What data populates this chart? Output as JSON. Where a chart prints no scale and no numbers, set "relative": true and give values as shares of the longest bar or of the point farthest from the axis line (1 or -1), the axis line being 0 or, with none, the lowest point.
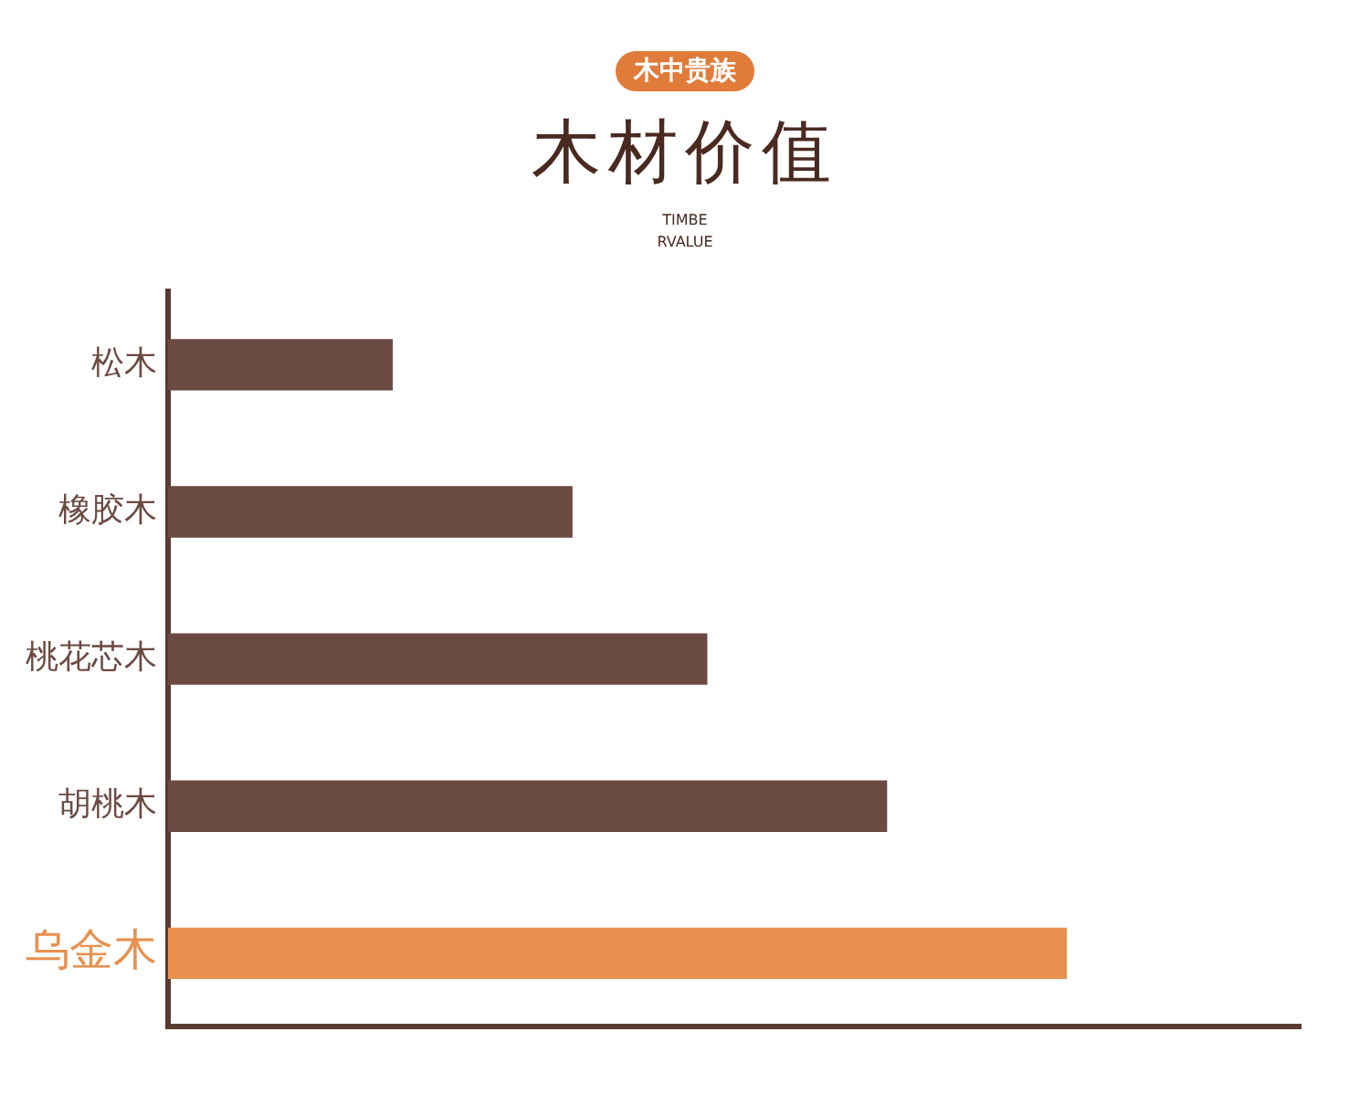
{
  "chart_data": {
    "type": "bar",
    "orientation": "horizontal",
    "relative": true,
    "title": "木材价值",
    "subtitle": "TIMBE RVALUE",
    "annotations": [
      "木中贵族"
    ],
    "categories": [
      "松木",
      "橡胶木",
      "桃花芯木",
      "胡桃木",
      "乌金木"
    ],
    "values": [
      0.25,
      0.45,
      0.6,
      0.8,
      1
    ],
    "colors": [
      "#6b4a42",
      "#6b4a42",
      "#6b4a42",
      "#6b4a42",
      "#e8904e"
    ],
    "grid": false,
    "legend": false
  }
}
